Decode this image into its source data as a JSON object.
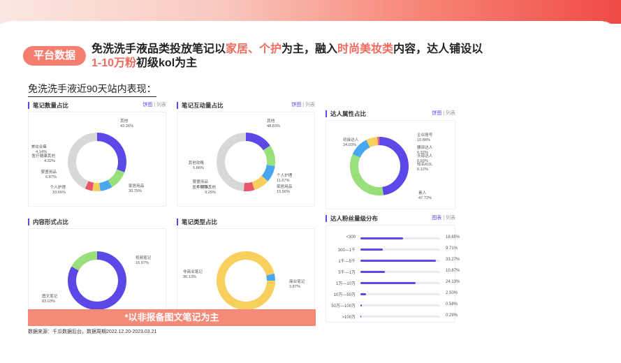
{
  "header": {
    "tag": "平台数据",
    "line1": [
      {
        "t": "免洗洗手液品类投放笔记以",
        "hl": false
      },
      {
        "t": "家居、个护",
        "hl": true
      },
      {
        "t": "为主，融入",
        "hl": false
      },
      {
        "t": "时尚美妆类",
        "hl": true
      },
      {
        "t": "内容，达人铺设以",
        "hl": false
      }
    ],
    "line2": [
      {
        "t": "1-10万粉",
        "hl": true
      },
      {
        "t": "初级kol为主",
        "hl": false
      }
    ],
    "subtitle": "免洗洗手液近90天站内表现："
  },
  "tabs": {
    "pie": "饼图",
    "list": "列表",
    "chart": "图表"
  },
  "colors": {
    "accent": "#5b48e6",
    "brand": "#f67e6e"
  },
  "chart_data": [
    {
      "id": "note-count",
      "type": "pie",
      "title": "笔记数量占比",
      "slices": [
        {
          "name": "家居用品",
          "value": 30.75,
          "color": "#5b48e6"
        },
        {
          "name": "个人护理",
          "value": 10.66,
          "color": "#99e07d"
        },
        {
          "name": "婴童用品",
          "value": 6.87,
          "color": "#4aa7ef"
        },
        {
          "name": "医疗健康其他",
          "value": 4.32,
          "color": "#f8cf5c"
        },
        {
          "name": "美妆合集",
          "value": 4.14,
          "color": "#e8566b"
        },
        {
          "name": "其他",
          "value": 43.26,
          "color": "#d8d8d8"
        }
      ],
      "labels": [
        {
          "name": "其他",
          "value": "43.26%"
        },
        {
          "name": "美妆合集",
          "value": "4.14%"
        },
        {
          "name": "医疗健康其他",
          "value": "4.32%"
        },
        {
          "name": "婴童用品",
          "value": "6.87%"
        },
        {
          "name": "个人护理",
          "value": "10.66%"
        },
        {
          "name": "家居用品",
          "value": "30.75%"
        }
      ]
    },
    {
      "id": "note-interaction",
      "type": "pie",
      "title": "笔记互动量占比",
      "slices": [
        {
          "name": "家居用品",
          "value": 15.56,
          "color": "#5b48e6"
        },
        {
          "name": "个人护理",
          "value": 11.67,
          "color": "#99e07d"
        },
        {
          "name": "医疗健康其他",
          "value": 9.26,
          "color": "#4aa7ef"
        },
        {
          "name": "婴童用品",
          "value": 8.82,
          "color": "#f8cf5c"
        },
        {
          "name": "其他攻略",
          "value": 5.86,
          "color": "#e8566b"
        },
        {
          "name": "其他",
          "value": 48.83,
          "color": "#d8d8d8"
        }
      ],
      "labels": [
        {
          "name": "其他",
          "value": "48.83%"
        },
        {
          "name": "其他攻略",
          "value": "5.86%"
        },
        {
          "name": "婴童用品",
          "value": "8.82%"
        },
        {
          "name": "医疗健康其他",
          "value": "9.26%"
        },
        {
          "name": "个人护理",
          "value": "11.67%"
        },
        {
          "name": "家居用品",
          "value": "15.56%"
        }
      ]
    },
    {
      "id": "kol-type",
      "type": "pie",
      "title": "达人属性占比",
      "slices": [
        {
          "name": "素人",
          "value": 47.72,
          "color": "#5b48e6"
        },
        {
          "name": "初级达人",
          "value": 34.03,
          "color": "#99e07d"
        },
        {
          "name": "企业账号",
          "value": 10.88,
          "color": "#4aa7ef"
        },
        {
          "name": "腰部达人",
          "value": 6.32,
          "color": "#f8cf5c"
        },
        {
          "name": "头部达人",
          "value": 0.93,
          "color": "#e8566b"
        },
        {
          "name": "知名KOL",
          "value": 0.12,
          "color": "#f28b9b"
        }
      ],
      "labels": [
        {
          "name": "初级达人",
          "value": "34.03%"
        },
        {
          "name": "企业账号",
          "value": "10.88%"
        },
        {
          "name": "腰部达人",
          "value": "6.32%"
        },
        {
          "name": "头部达人",
          "value": "0.93%"
        },
        {
          "name": "知名KOL",
          "value": "0.12%"
        },
        {
          "name": "素人",
          "value": "47.72%"
        }
      ]
    },
    {
      "id": "content-form",
      "type": "pie",
      "title": "内容形式占比",
      "slices": [
        {
          "name": "图文笔记",
          "value": 83.03,
          "color": "#5b48e6"
        },
        {
          "name": "视频笔记",
          "value": 16.97,
          "color": "#99e07d"
        }
      ],
      "labels": [
        {
          "name": "视频笔记",
          "value": "16.97%"
        },
        {
          "name": "图文笔记",
          "value": "83.03%"
        }
      ]
    },
    {
      "id": "note-type",
      "type": "pie",
      "title": "笔记类型占比",
      "slices": [
        {
          "name": "非商业笔记",
          "value": 96.13,
          "color": "#f8cf5c"
        },
        {
          "name": "商业笔记",
          "value": 3.87,
          "color": "#4aa7ef"
        }
      ],
      "labels": [
        {
          "name": "非商业笔记",
          "value": "96.13%"
        },
        {
          "name": "商业笔记",
          "value": "3.87%"
        }
      ]
    },
    {
      "id": "fans-dist",
      "type": "bar",
      "title": "达人粉丝量级分布",
      "categories": [
        "<300",
        "300—1千",
        "1千—5千",
        "5千—1万",
        "1万—10万",
        "10万—50万",
        "50万—100万",
        ">100万"
      ],
      "values": [
        18.65,
        9.71,
        33.27,
        10.87,
        24.13,
        2.5,
        0.58,
        0.29
      ],
      "value_labels": [
        "18.65%",
        "9.71%",
        "33.27%",
        "10.87%",
        "24.13%",
        "2.50%",
        "0.58%",
        "0.29%"
      ],
      "xlim": [
        0,
        35
      ]
    }
  ],
  "footer": {
    "banner": "*以非报备图文笔记为主",
    "source": "数据来源：千瓜数据后台，数据周期2022.12.20-2023.03.21"
  }
}
